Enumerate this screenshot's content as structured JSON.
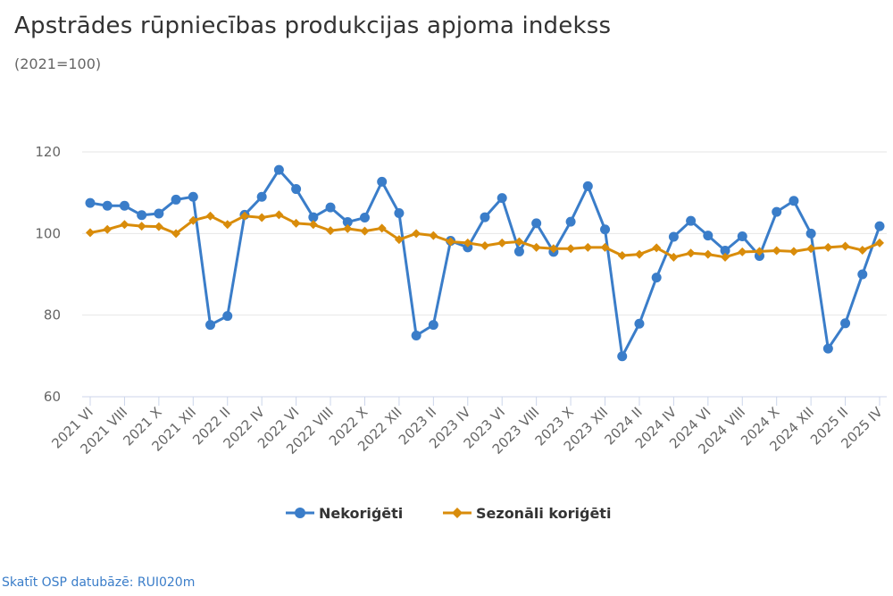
{
  "title": "Apstrādes rūpniecības produkcijas apjoma indekss",
  "subtitle": "(2021=100)",
  "source_link": "Skatīt OSP datubāzē: RUI020m",
  "colors": {
    "series1": "#3a7dc9",
    "series2": "#d98c0a",
    "grid": "#e6e6e6",
    "axis": "#ccd6eb"
  },
  "chart_data": {
    "type": "line",
    "x": [
      "2021 VI",
      "2021 VII",
      "2021 VIII",
      "2021 IX",
      "2021 X",
      "2021 XI",
      "2021 XII",
      "2022 I",
      "2022 II",
      "2022 III",
      "2022 IV",
      "2022 V",
      "2022 VI",
      "2022 VII",
      "2022 VIII",
      "2022 IX",
      "2022 X",
      "2022 XI",
      "2022 XII",
      "2023 I",
      "2023 II",
      "2023 III",
      "2023 IV",
      "2023 V",
      "2023 VI",
      "2023 VII",
      "2023 VIII",
      "2023 IX",
      "2023 X",
      "2023 XI",
      "2023 XII",
      "2024 I",
      "2024 II",
      "2024 III",
      "2024 IV",
      "2024 V",
      "2024 VI",
      "2024 VII",
      "2024 VIII",
      "2024 IX",
      "2024 X",
      "2024 XI",
      "2024 XII",
      "2025 I",
      "2025 II",
      "2025 III",
      "2025 IV"
    ],
    "tick_labels": [
      "2021 VI",
      "2021 VIII",
      "2021 X",
      "2021 XII",
      "2022 II",
      "2022 IV",
      "2022 VI",
      "2022 VIII",
      "2022 X",
      "2022 XII",
      "2023 II",
      "2023 IV",
      "2023 VI",
      "2023 VIII",
      "2023 X",
      "2023 XII",
      "2024 II",
      "2024 IV",
      "2024 VI",
      "2024 VIII",
      "2024 X",
      "2024 XII",
      "2025 II",
      "2025 IV"
    ],
    "series": [
      {
        "name": "Nekoriģēti",
        "marker": "circle",
        "values": [
          107.5,
          106.8,
          106.8,
          104.5,
          104.9,
          108.3,
          109.0,
          77.6,
          79.8,
          104.6,
          109.0,
          115.6,
          110.9,
          104.0,
          106.4,
          102.8,
          103.9,
          112.7,
          105.0,
          75.0,
          77.6,
          98.2,
          96.6,
          104.0,
          108.7,
          95.6,
          102.5,
          95.5,
          102.9,
          111.6,
          101.0,
          69.9,
          77.9,
          89.2,
          99.2,
          103.1,
          99.5,
          95.8,
          99.3,
          94.5,
          105.3,
          108.0,
          100.0,
          71.8,
          78.0,
          90.0,
          101.8
        ]
      },
      {
        "name": "Sezonāli koriģēti",
        "marker": "diamond",
        "values": [
          100.2,
          101.0,
          102.2,
          101.8,
          101.7,
          100.0,
          103.2,
          104.3,
          102.2,
          104.3,
          103.9,
          104.6,
          102.5,
          102.2,
          100.7,
          101.2,
          100.6,
          101.3,
          98.5,
          100.0,
          99.5,
          98.0,
          97.7,
          97.0,
          97.7,
          98.0,
          96.6,
          96.3,
          96.3,
          96.6,
          96.6,
          94.6,
          94.9,
          96.5,
          94.2,
          95.2,
          94.9,
          94.2,
          95.5,
          95.6,
          95.8,
          95.6,
          96.3,
          96.6,
          96.9,
          95.9,
          97.7
        ]
      }
    ],
    "ylim": [
      60,
      120
    ],
    "yticks": [
      60,
      80,
      100,
      120
    ],
    "grid": true,
    "legend": "bottom-center",
    "xlabel": "",
    "ylabel": ""
  }
}
